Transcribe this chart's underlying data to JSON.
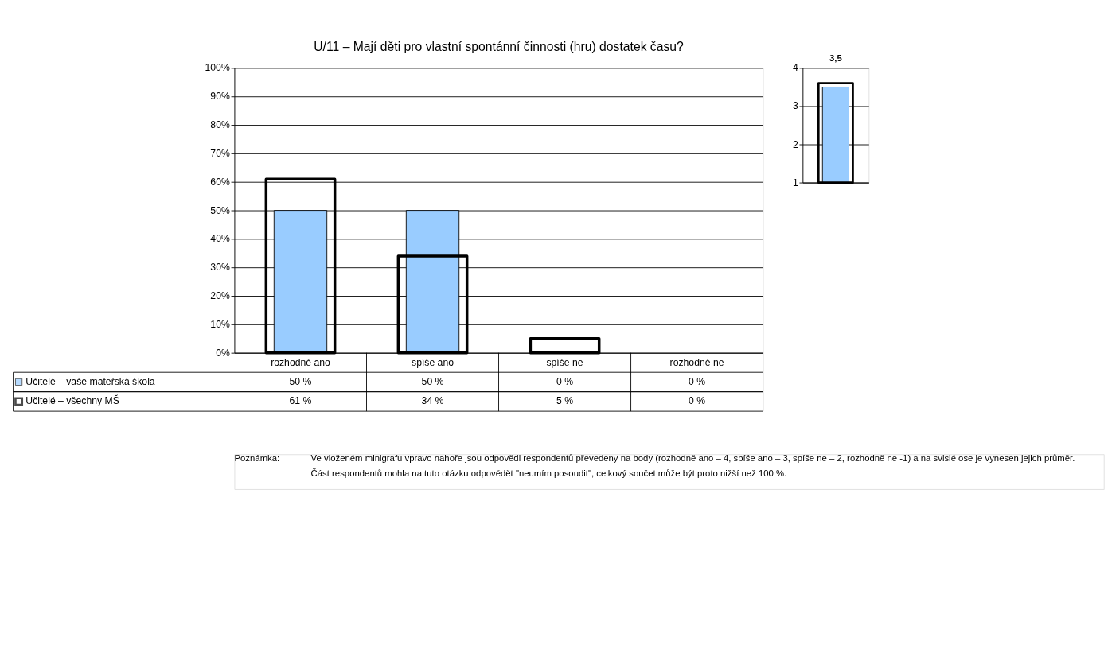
{
  "chart_data": [
    {
      "type": "bar",
      "title": "U/11 – Mají děti pro vlastní spontánní činnosti (hru) dostatek času?",
      "categories": [
        "rozhodně ano",
        "spíše ano",
        "spíše ne",
        "rozhodně ne"
      ],
      "series": [
        {
          "name": "Učitelé – vaše mateřská škola",
          "color": "#99ccff",
          "values": [
            50,
            50,
            0,
            0
          ],
          "value_labels": [
            "50 %",
            "50 %",
            "0 %",
            "0 %"
          ]
        },
        {
          "name": "Učitelé – všechny MŠ",
          "color": "#000000",
          "values": [
            61,
            34,
            5,
            0
          ],
          "value_labels": [
            "61 %",
            "34 %",
            "5 %",
            "0 %"
          ]
        }
      ],
      "ylim": [
        0,
        100
      ],
      "yticks": [
        {
          "value": 0,
          "label": "0%"
        },
        {
          "value": 10,
          "label": "10%"
        },
        {
          "value": 20,
          "label": "20%"
        },
        {
          "value": 30,
          "label": "30%"
        },
        {
          "value": 40,
          "label": "40%"
        },
        {
          "value": 50,
          "label": "50%"
        },
        {
          "value": 60,
          "label": "60%"
        },
        {
          "value": 70,
          "label": "70%"
        },
        {
          "value": 80,
          "label": "80%"
        },
        {
          "value": 90,
          "label": "90%"
        },
        {
          "value": 100,
          "label": "100%"
        }
      ],
      "grid": "y",
      "legend": "bottom left",
      "annotations": [
        "Poznámka:",
        "Ve vloženém minigrafu vpravo nahoře jsou odpovědi respondentů převedeny na body (rozhodně ano – 4, spíše ano – 3, spíše ne – 2, rozhodně ne -1) a na svislé ose je vynesen jejich průměr.",
        "Část respondentů mohla na tuto otázku odpovědět \"neumím posoudit\", celkový součet může být proto nižší než 100 %."
      ]
    },
    {
      "type": "bar",
      "categories": [
        null
      ],
      "series": [
        {
          "color": "#99ccff",
          "values": [
            3.5
          ],
          "value_labels": [
            "3,5"
          ]
        },
        {
          "color": "#000000",
          "values": [
            3.6
          ]
        }
      ],
      "ylim": [
        1,
        4
      ],
      "yticks": [
        1,
        2,
        3,
        4
      ],
      "grid": "y"
    }
  ]
}
